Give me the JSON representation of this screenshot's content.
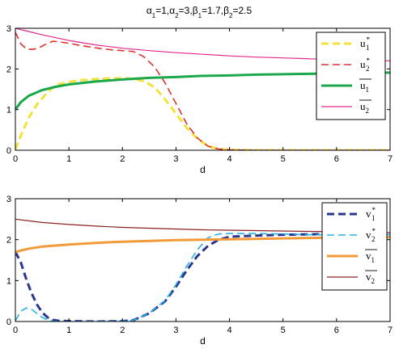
{
  "title": {
    "a1": "1",
    "a2": "3",
    "b1": "1.7",
    "b2": "2.5"
  },
  "chart_data": [
    {
      "type": "line",
      "xlabel": "d",
      "xlim": [
        0,
        7
      ],
      "ylim": [
        0,
        3
      ],
      "xticks": [
        "0",
        "1",
        "2",
        "3",
        "4",
        "5",
        "6",
        "7"
      ],
      "yticks": [
        "0",
        "1",
        "2",
        "3"
      ],
      "legend_position": "top-right",
      "series": [
        {
          "name": "u1*",
          "base": "u",
          "sub": "1",
          "mark": "star",
          "color": "#f2e23a",
          "dash": "9,5",
          "width": 3,
          "x": [
            0,
            0.1,
            0.25,
            0.4,
            0.55,
            0.7,
            0.8,
            1.0,
            1.2,
            1.4,
            1.6,
            1.8,
            2.0,
            2.2,
            2.4,
            2.6,
            2.8,
            3.0,
            3.2,
            3.4,
            3.6,
            3.8,
            4.0,
            4.5,
            5,
            5.5,
            6,
            6.5,
            7
          ],
          "y": [
            0.02,
            0.35,
            0.8,
            1.12,
            1.35,
            1.55,
            1.62,
            1.68,
            1.72,
            1.74,
            1.76,
            1.77,
            1.77,
            1.76,
            1.7,
            1.55,
            1.25,
            0.9,
            0.55,
            0.28,
            0.1,
            0.03,
            0.01,
            0,
            0,
            0,
            0,
            0,
            0
          ]
        },
        {
          "name": "u2*",
          "base": "u",
          "sub": "2",
          "mark": "star",
          "color": "#e03030",
          "dash": "9,5",
          "width": 1.6,
          "x": [
            0,
            0.1,
            0.2,
            0.3,
            0.4,
            0.5,
            0.6,
            0.7,
            0.8,
            1.0,
            1.2,
            1.4,
            1.6,
            1.8,
            2.0,
            2.2,
            2.4,
            2.6,
            2.8,
            3.0,
            3.2,
            3.4,
            3.6,
            3.8,
            4.0,
            4.5,
            5,
            5.5,
            6,
            6.5,
            7
          ],
          "y": [
            2.9,
            2.62,
            2.5,
            2.48,
            2.5,
            2.56,
            2.63,
            2.68,
            2.67,
            2.63,
            2.58,
            2.54,
            2.5,
            2.47,
            2.45,
            2.43,
            2.3,
            2.05,
            1.65,
            1.15,
            0.65,
            0.3,
            0.1,
            0.03,
            0.01,
            0,
            0,
            0,
            0,
            0,
            0
          ]
        },
        {
          "name": "ū1",
          "base": "u",
          "sub": "1",
          "mark": "bar",
          "color": "#1aa84a",
          "dash": "",
          "width": 3,
          "x": [
            0,
            0.1,
            0.25,
            0.5,
            0.75,
            1,
            1.5,
            2,
            2.5,
            3,
            3.5,
            4,
            4.5,
            5,
            5.5,
            6,
            6.5,
            7
          ],
          "y": [
            1.0,
            1.18,
            1.34,
            1.48,
            1.56,
            1.62,
            1.69,
            1.74,
            1.78,
            1.8,
            1.83,
            1.84,
            1.86,
            1.87,
            1.88,
            1.89,
            1.9,
            1.91
          ]
        },
        {
          "name": "ū2",
          "base": "u",
          "sub": "2",
          "mark": "bar",
          "color": "#e0288a",
          "dash": "",
          "width": 1.2,
          "x": [
            0,
            0.25,
            0.5,
            1,
            1.5,
            2,
            2.5,
            3,
            3.5,
            4,
            4.5,
            5,
            5.5,
            6,
            6.5,
            7
          ],
          "y": [
            3.0,
            2.92,
            2.84,
            2.7,
            2.59,
            2.51,
            2.45,
            2.4,
            2.36,
            2.32,
            2.29,
            2.27,
            2.25,
            2.23,
            2.21,
            2.2
          ]
        }
      ]
    },
    {
      "type": "line",
      "xlabel": "d",
      "xlim": [
        0,
        7
      ],
      "ylim": [
        0,
        3
      ],
      "xticks": [
        "0",
        "1",
        "2",
        "3",
        "4",
        "5",
        "6",
        "7"
      ],
      "yticks": [
        "0",
        "1",
        "2",
        "3"
      ],
      "legend_position": "top-right",
      "series": [
        {
          "name": "v1*",
          "base": "v",
          "sub": "1",
          "mark": "star",
          "color": "#2a3590",
          "dash": "9,5",
          "width": 3,
          "x": [
            0,
            0.1,
            0.2,
            0.3,
            0.4,
            0.5,
            0.6,
            0.7,
            0.8,
            1.0,
            1.5,
            2.0,
            2.2,
            2.5,
            2.8,
            3.0,
            3.2,
            3.4,
            3.6,
            3.8,
            4.0,
            4.5,
            5,
            5.5,
            6,
            6.5,
            7
          ],
          "y": [
            1.7,
            1.45,
            1.05,
            0.7,
            0.42,
            0.22,
            0.1,
            0.04,
            0.02,
            0.01,
            0,
            0.01,
            0.03,
            0.2,
            0.5,
            0.85,
            1.25,
            1.6,
            1.85,
            2.0,
            2.07,
            2.1,
            2.12,
            2.13,
            2.14,
            2.14,
            2.15
          ]
        },
        {
          "name": "v2*",
          "base": "v",
          "sub": "2",
          "mark": "star",
          "color": "#24b4e4",
          "dash": "9,5",
          "width": 1.6,
          "x": [
            0,
            0.1,
            0.2,
            0.3,
            0.4,
            0.5,
            0.6,
            0.7,
            0.8,
            1.0,
            1.5,
            2.0,
            2.2,
            2.5,
            2.8,
            3.0,
            3.2,
            3.4,
            3.6,
            3.8,
            4.0,
            4.5,
            5,
            5.5,
            6,
            6.5,
            7
          ],
          "y": [
            0.02,
            0.25,
            0.33,
            0.3,
            0.2,
            0.1,
            0.04,
            0.01,
            0,
            0,
            0,
            0.01,
            0.03,
            0.2,
            0.52,
            0.9,
            1.35,
            1.75,
            2.05,
            2.14,
            2.15,
            2.15,
            2.14,
            2.12,
            2.12,
            2.12,
            2.12
          ]
        },
        {
          "name": "v̄1",
          "base": "v",
          "sub": "1",
          "mark": "bar",
          "color": "#f29a38",
          "dash": "",
          "width": 3,
          "x": [
            0,
            0.25,
            0.5,
            1,
            1.5,
            2,
            2.5,
            3,
            3.5,
            4,
            4.5,
            5,
            5.5,
            6,
            6.5,
            7
          ],
          "y": [
            1.7,
            1.78,
            1.83,
            1.88,
            1.92,
            1.95,
            1.97,
            1.99,
            2.0,
            2.01,
            2.02,
            2.03,
            2.04,
            2.05,
            2.05,
            2.06
          ]
        },
        {
          "name": "v̄2",
          "base": "v",
          "sub": "2",
          "mark": "bar",
          "color": "#8a2020",
          "dash": "",
          "width": 1.2,
          "x": [
            0,
            0.25,
            0.5,
            1,
            1.5,
            2,
            2.5,
            3,
            3.5,
            4,
            4.5,
            5,
            5.5,
            6,
            6.5,
            7
          ],
          "y": [
            2.5,
            2.46,
            2.42,
            2.37,
            2.33,
            2.3,
            2.28,
            2.26,
            2.24,
            2.23,
            2.22,
            2.21,
            2.2,
            2.19,
            2.18,
            2.17
          ]
        }
      ]
    }
  ]
}
